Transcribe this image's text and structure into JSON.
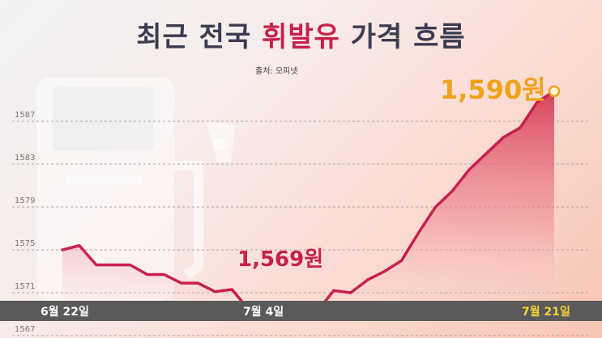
{
  "title": {
    "part1": "최근 전국 ",
    "part2": "휘발유",
    "part3": " 가격 흐름"
  },
  "source": "출처: 오피넷",
  "colors": {
    "line": "#c8214b",
    "max_label": "#f0a21b",
    "title_dark": "#3b3b52",
    "bottom_bar": "#5a5a5a",
    "end_label": "#f7d23a"
  },
  "annotations": {
    "min": "1,569원",
    "max": "1,590원"
  },
  "chart_data": {
    "type": "area",
    "title": "최근 전국 휘발유 가격 흐름",
    "y_ticks": [
      "1587",
      "1583",
      "1579",
      "1575",
      "1571",
      "1567"
    ],
    "x_tick_labels": [
      "6월 22일",
      "7월 4일",
      "7월 21일"
    ],
    "ylim": [
      1567,
      1590
    ],
    "grid": true,
    "x": [
      "6/22",
      "6/23",
      "6/24",
      "6/25",
      "6/26",
      "6/27",
      "6/28",
      "6/29",
      "6/30",
      "7/1",
      "7/2",
      "7/3",
      "7/4",
      "7/5",
      "7/6",
      "7/7",
      "7/8",
      "7/9",
      "7/10",
      "7/11",
      "7/12",
      "7/13",
      "7/14",
      "7/15",
      "7/16",
      "7/17",
      "7/18",
      "7/19",
      "7/20",
      "7/21"
    ],
    "values": [
      1575.0,
      1575.4,
      1573.6,
      1573.6,
      1573.6,
      1572.7,
      1572.7,
      1571.9,
      1571.9,
      1571.1,
      1571.3,
      1569.4,
      1569.2,
      1569.4,
      1569.2,
      1569.2,
      1571.2,
      1571.0,
      1572.2,
      1573.0,
      1574.0,
      1576.6,
      1579.0,
      1580.5,
      1582.5,
      1584.0,
      1585.5,
      1586.4,
      1588.8,
      1589.8
    ]
  }
}
